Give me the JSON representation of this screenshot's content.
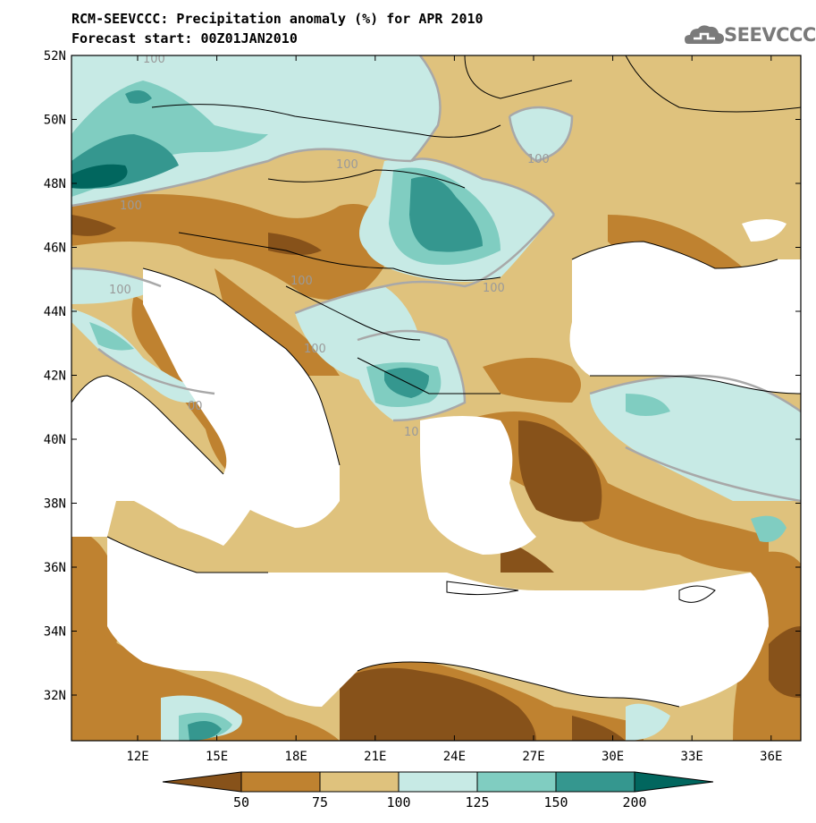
{
  "header": {
    "title": "RCM-SEEVCCC: Precipitation anomaly (%) for APR 2010",
    "subtitle": "Forecast start: 00Z01JAN2010",
    "logo_text": "SEEVCCC"
  },
  "colors": {
    "lt50": "#87521a",
    "c50_75": "#bf8230",
    "c75_100": "#dfc27d",
    "c100_125": "#c7eae5",
    "c125_150": "#80cdc1",
    "c150_200": "#35978f",
    "gt200": "#01665e",
    "contour": "#a8a8a8",
    "coast": "#000000",
    "sea": "#ffffff"
  },
  "map": {
    "lat_labels": [
      "52N",
      "50N",
      "48N",
      "46N",
      "44N",
      "42N",
      "40N",
      "38N",
      "36N",
      "34N",
      "32N"
    ],
    "lon_labels": [
      "12E",
      "15E",
      "18E",
      "21E",
      "24E",
      "27E",
      "30E",
      "33E",
      "36E"
    ],
    "contour_labels": [
      {
        "text": "100"
      },
      {
        "text": "100"
      },
      {
        "text": "100"
      },
      {
        "text": "100"
      },
      {
        "text": "100"
      },
      {
        "text": "100"
      },
      {
        "text": "100"
      },
      {
        "text": "100"
      },
      {
        "text": "10"
      },
      {
        "text": "00"
      }
    ]
  },
  "colorbar": {
    "labels": [
      "50",
      "75",
      "100",
      "125",
      "150",
      "200"
    ]
  }
}
